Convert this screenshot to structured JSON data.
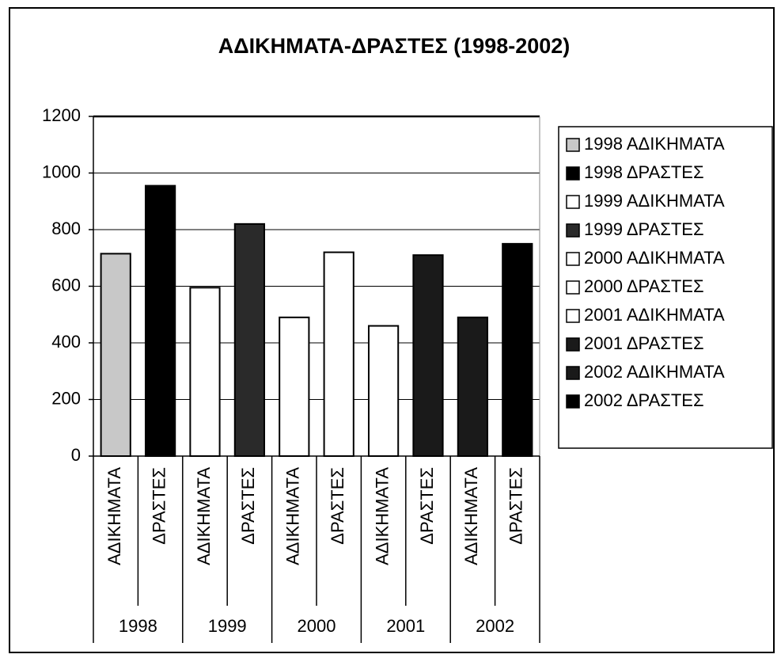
{
  "chart_data": {
    "type": "bar",
    "title": "ΑΔΙΚΗΜΑΤΑ-ΔΡΑΣΤΕΣ (1998-2002)",
    "categories": [
      "ΑΔΙΚΗΜΑΤΑ",
      "ΔΡΑΣΤΕΣ",
      "ΑΔΙΚΗΜΑΤΑ",
      "ΔΡΑΣΤΕΣ",
      "ΑΔΙΚΗΜΑΤΑ",
      "ΔΡΑΣΤΕΣ",
      "ΑΔΙΚΗΜΑΤΑ",
      "ΔΡΑΣΤΕΣ",
      "ΑΔΙΚΗΜΑΤΑ",
      "ΔΡΑΣΤΕΣ"
    ],
    "groups": [
      "1998",
      "1999",
      "2000",
      "2001",
      "2002"
    ],
    "series": [
      {
        "name": "1998 ΑΔΙΚΗΜΑΤΑ",
        "color": "#c8c8c8",
        "values": [
          715,
          null,
          null,
          null,
          null,
          null,
          null,
          null,
          null,
          null
        ]
      },
      {
        "name": "1998 ΔΡΑΣΤΕΣ",
        "color": "#000000",
        "values": [
          null,
          955,
          null,
          null,
          null,
          null,
          null,
          null,
          null,
          null
        ]
      },
      {
        "name": "1999 ΑΔΙΚΗΜΑΤΑ",
        "color": "#ffffff",
        "values": [
          null,
          null,
          595,
          null,
          null,
          null,
          null,
          null,
          null,
          null
        ]
      },
      {
        "name": "1999 ΔΡΑΣΤΕΣ",
        "color": "#2a2a2a",
        "values": [
          null,
          null,
          null,
          820,
          null,
          null,
          null,
          null,
          null,
          null
        ]
      },
      {
        "name": "2000 ΑΔΙΚΗΜΑΤΑ",
        "color": "#ffffff",
        "values": [
          null,
          null,
          null,
          null,
          490,
          null,
          null,
          null,
          null,
          null
        ]
      },
      {
        "name": "2000 ΔΡΑΣΤΕΣ",
        "color": "#ffffff",
        "values": [
          null,
          null,
          null,
          null,
          null,
          720,
          null,
          null,
          null,
          null
        ]
      },
      {
        "name": "2001 ΑΔΙΚΗΜΑΤΑ",
        "color": "#ffffff",
        "values": [
          null,
          null,
          null,
          null,
          null,
          null,
          460,
          null,
          null,
          null
        ]
      },
      {
        "name": "2001 ΔΡΑΣΤΕΣ",
        "color": "#1a1a1a",
        "values": [
          null,
          null,
          null,
          null,
          null,
          null,
          null,
          710,
          null,
          null
        ]
      },
      {
        "name": "2002 ΑΔΙΚΗΜΑΤΑ",
        "color": "#1a1a1a",
        "values": [
          null,
          null,
          null,
          null,
          null,
          null,
          null,
          null,
          490,
          null
        ]
      },
      {
        "name": "2002 ΔΡΑΣΤΕΣ",
        "color": "#000000",
        "values": [
          null,
          null,
          null,
          null,
          null,
          null,
          null,
          null,
          null,
          750
        ]
      }
    ],
    "ylim": [
      0,
      1200
    ],
    "yticks": [
      0,
      200,
      400,
      600,
      800,
      1000,
      1200
    ],
    "grid": true,
    "legend": "right"
  }
}
